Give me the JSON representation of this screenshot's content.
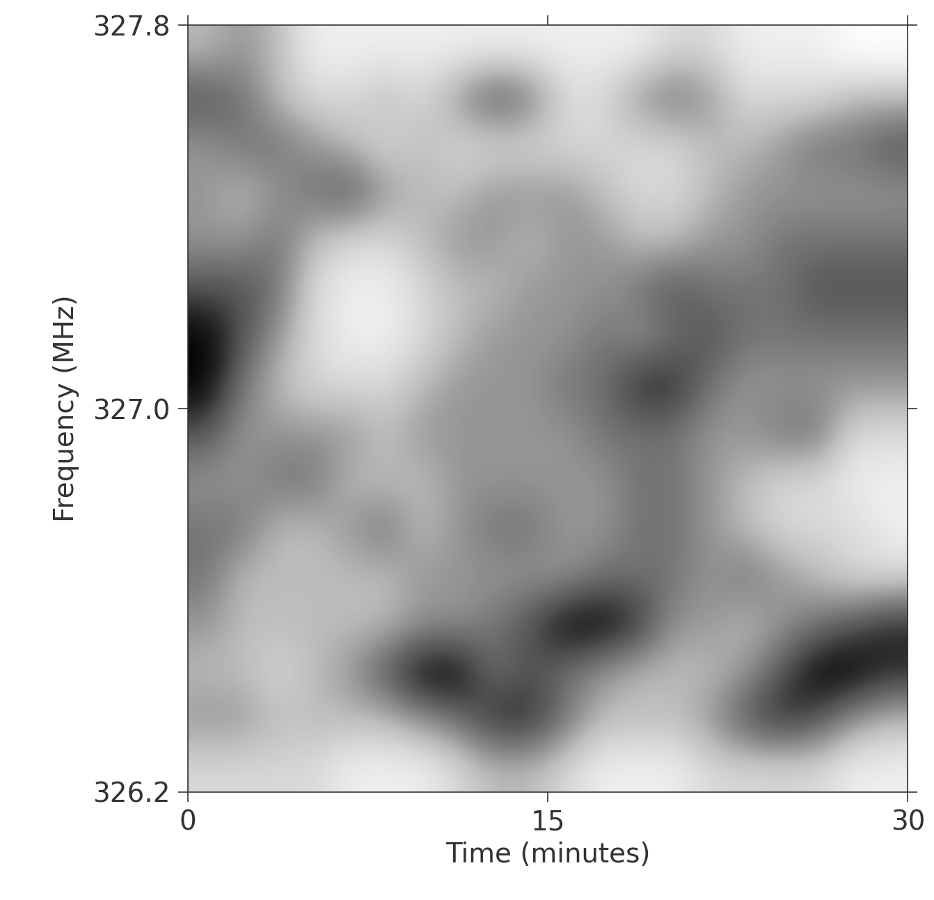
{
  "chart_data": {
    "type": "heatmap",
    "x_label": "Time (minutes)",
    "y_label": "Frequency (MHz)",
    "xlim": [
      0,
      30
    ],
    "xticks": [
      0,
      15,
      30
    ],
    "ylim": [
      326.2,
      327.8
    ],
    "yticks": [
      326.2,
      327.0,
      327.8
    ],
    "color": "Greys",
    "grid": false,
    "values": [
      [
        0.4,
        0.5,
        0.4,
        0.2,
        0.2,
        0.2,
        0.2,
        0.2,
        0.2,
        0.2,
        0.2,
        0.2,
        0.2,
        0.3,
        0.3,
        0.2,
        0.2,
        0.2,
        0.1,
        0.1
      ],
      [
        0.7,
        0.6,
        0.4,
        0.3,
        0.3,
        0.4,
        0.3,
        0.5,
        0.7,
        0.6,
        0.3,
        0.3,
        0.5,
        0.6,
        0.5,
        0.3,
        0.3,
        0.3,
        0.4,
        0.4
      ],
      [
        0.5,
        0.6,
        0.6,
        0.5,
        0.4,
        0.3,
        0.4,
        0.3,
        0.3,
        0.3,
        0.3,
        0.3,
        0.3,
        0.3,
        0.4,
        0.4,
        0.5,
        0.6,
        0.6,
        0.7
      ],
      [
        0.5,
        0.4,
        0.5,
        0.6,
        0.7,
        0.5,
        0.4,
        0.4,
        0.5,
        0.5,
        0.5,
        0.4,
        0.3,
        0.3,
        0.4,
        0.5,
        0.5,
        0.5,
        0.5,
        0.5
      ],
      [
        0.5,
        0.5,
        0.6,
        0.4,
        0.3,
        0.3,
        0.4,
        0.5,
        0.5,
        0.4,
        0.5,
        0.5,
        0.4,
        0.4,
        0.5,
        0.5,
        0.6,
        0.6,
        0.6,
        0.6
      ],
      [
        0.7,
        0.7,
        0.6,
        0.3,
        0.2,
        0.2,
        0.3,
        0.4,
        0.4,
        0.5,
        0.5,
        0.5,
        0.6,
        0.7,
        0.6,
        0.6,
        0.6,
        0.7,
        0.7,
        0.7
      ],
      [
        0.9,
        0.7,
        0.5,
        0.3,
        0.2,
        0.2,
        0.3,
        0.4,
        0.5,
        0.5,
        0.5,
        0.6,
        0.5,
        0.6,
        0.7,
        0.6,
        0.6,
        0.6,
        0.6,
        0.6
      ],
      [
        0.9,
        0.6,
        0.4,
        0.3,
        0.3,
        0.3,
        0.4,
        0.5,
        0.5,
        0.5,
        0.6,
        0.6,
        0.8,
        0.8,
        0.6,
        0.5,
        0.5,
        0.5,
        0.5,
        0.5
      ],
      [
        0.7,
        0.5,
        0.5,
        0.5,
        0.5,
        0.4,
        0.5,
        0.5,
        0.5,
        0.5,
        0.5,
        0.6,
        0.6,
        0.6,
        0.5,
        0.5,
        0.6,
        0.6,
        0.3,
        0.3
      ],
      [
        0.5,
        0.5,
        0.6,
        0.6,
        0.4,
        0.4,
        0.4,
        0.5,
        0.5,
        0.5,
        0.5,
        0.5,
        0.6,
        0.6,
        0.5,
        0.4,
        0.3,
        0.3,
        0.2,
        0.2
      ],
      [
        0.6,
        0.6,
        0.4,
        0.4,
        0.5,
        0.6,
        0.4,
        0.5,
        0.6,
        0.6,
        0.5,
        0.5,
        0.6,
        0.6,
        0.5,
        0.4,
        0.3,
        0.3,
        0.3,
        0.2
      ],
      [
        0.6,
        0.4,
        0.4,
        0.4,
        0.4,
        0.4,
        0.5,
        0.5,
        0.5,
        0.5,
        0.5,
        0.6,
        0.6,
        0.6,
        0.5,
        0.6,
        0.5,
        0.4,
        0.3,
        0.3
      ],
      [
        0.5,
        0.4,
        0.4,
        0.4,
        0.4,
        0.4,
        0.5,
        0.5,
        0.6,
        0.7,
        0.9,
        0.9,
        0.8,
        0.5,
        0.5,
        0.4,
        0.5,
        0.6,
        0.7,
        0.8
      ],
      [
        0.4,
        0.4,
        0.3,
        0.4,
        0.5,
        0.7,
        0.9,
        0.9,
        0.6,
        0.7,
        0.6,
        0.5,
        0.4,
        0.4,
        0.4,
        0.5,
        0.7,
        0.9,
        0.9,
        0.8
      ],
      [
        0.5,
        0.5,
        0.4,
        0.4,
        0.4,
        0.4,
        0.5,
        0.6,
        0.8,
        0.8,
        0.6,
        0.4,
        0.4,
        0.4,
        0.5,
        0.7,
        0.8,
        0.7,
        0.5,
        0.4
      ],
      [
        0.3,
        0.3,
        0.3,
        0.3,
        0.2,
        0.2,
        0.2,
        0.3,
        0.4,
        0.4,
        0.3,
        0.2,
        0.2,
        0.2,
        0.3,
        0.3,
        0.3,
        0.3,
        0.2,
        0.2
      ]
    ]
  }
}
